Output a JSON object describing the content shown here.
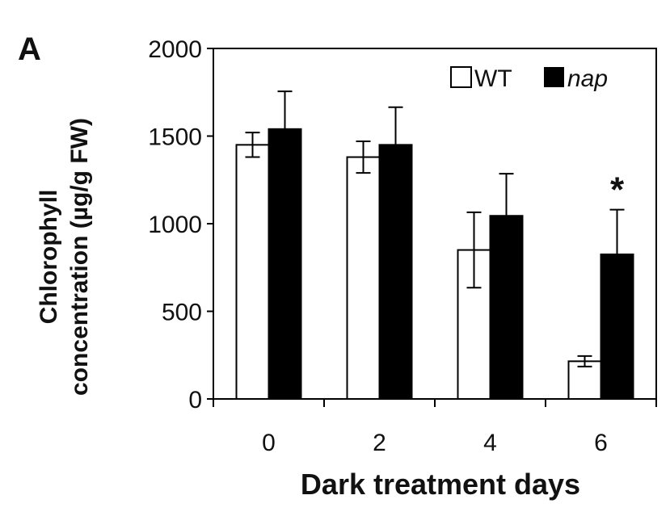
{
  "panel_label": "A",
  "chart_data": {
    "type": "bar",
    "title": "",
    "xlabel": "Dark treatment days",
    "ylabel": "Chlorophyll concentration (µg/g FW)",
    "ylabel_lines": [
      "Chlorophyll",
      "concentration (µg/g FW)"
    ],
    "categories": [
      "0",
      "2",
      "4",
      "6"
    ],
    "ylim": [
      0,
      2000
    ],
    "yticks": [
      0,
      500,
      1000,
      1500,
      2000
    ],
    "grid": false,
    "legend_position": "top-right",
    "series": [
      {
        "name": "WT",
        "color": "#ffffff",
        "stroke": "#000000",
        "values": [
          1450,
          1380,
          850,
          215
        ],
        "errors": [
          70,
          90,
          215,
          30
        ]
      },
      {
        "name": "nap",
        "color": "#000000",
        "stroke": "#000000",
        "values": [
          1540,
          1450,
          1045,
          825
        ],
        "errors": [
          215,
          215,
          240,
          255
        ]
      }
    ],
    "annotations": [
      {
        "text": "*",
        "category": "6",
        "series": "nap"
      }
    ]
  }
}
